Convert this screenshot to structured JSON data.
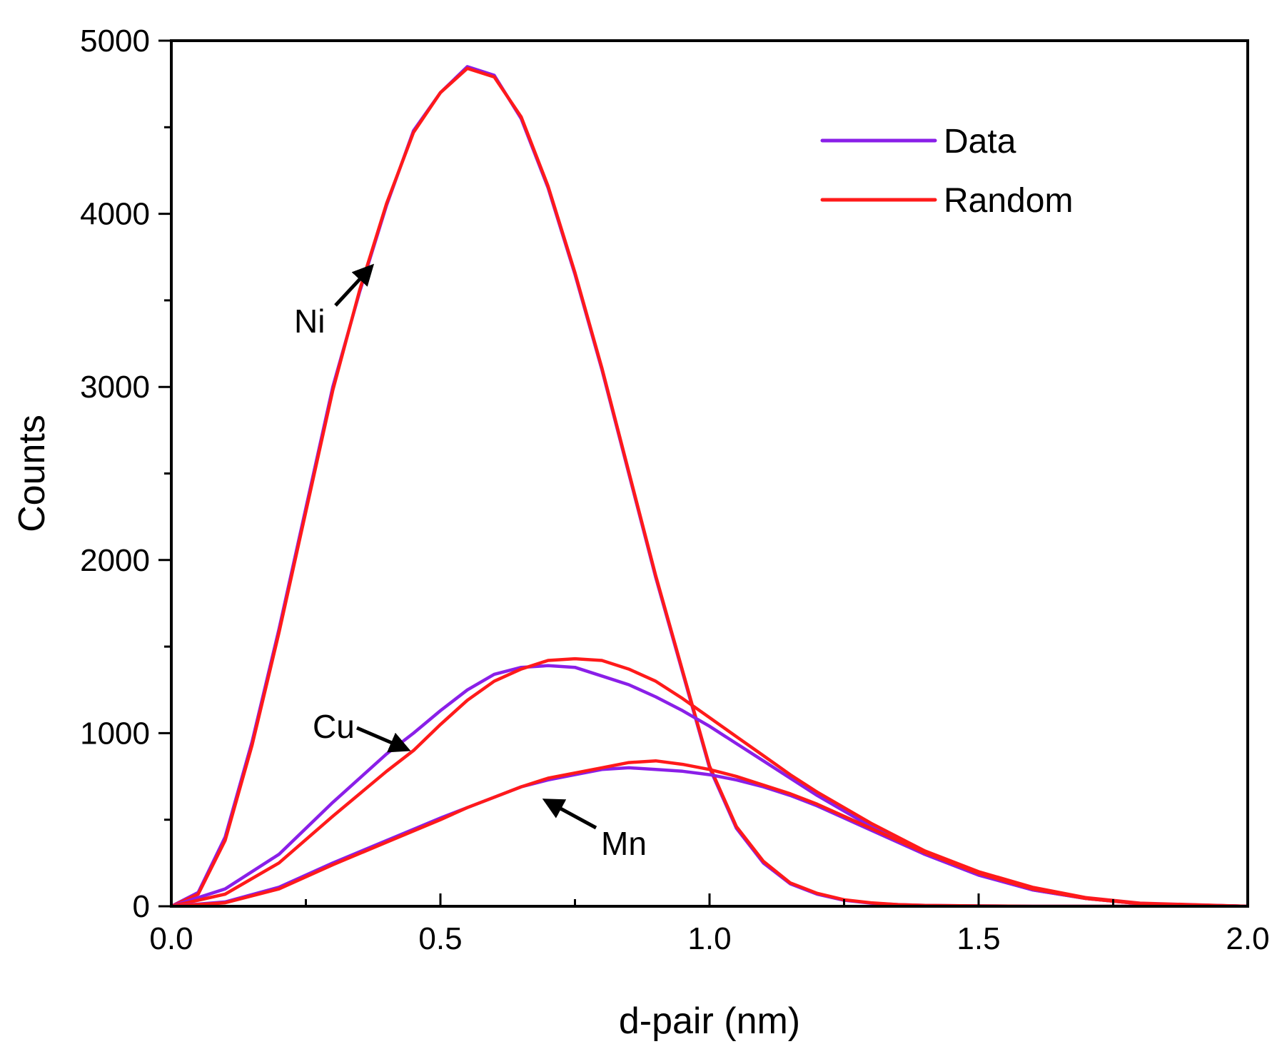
{
  "chart_data": {
    "type": "line",
    "title": "",
    "xlabel": "d-pair (nm)",
    "ylabel": "Counts",
    "xlim": [
      0,
      2.0
    ],
    "ylim": [
      0,
      5000
    ],
    "grid": false,
    "x_ticks": [
      {
        "value": 0.0,
        "label": "0.0"
      },
      {
        "value": 0.5,
        "label": "0.5"
      },
      {
        "value": 1.0,
        "label": "1.0"
      },
      {
        "value": 1.5,
        "label": "1.5"
      },
      {
        "value": 2.0,
        "label": "2.0"
      }
    ],
    "y_ticks": [
      {
        "value": 0,
        "label": "0"
      },
      {
        "value": 1000,
        "label": "1000"
      },
      {
        "value": 2000,
        "label": "2000"
      },
      {
        "value": 3000,
        "label": "3000"
      },
      {
        "value": 4000,
        "label": "4000"
      },
      {
        "value": 5000,
        "label": "5000"
      }
    ],
    "x_minor_step": 0.25,
    "y_minor_step": 500,
    "legend": {
      "position": "top-right",
      "entries": [
        {
          "label": "Data",
          "color": "#8a1fe8"
        },
        {
          "label": "Random",
          "color": "#ff1a1a"
        }
      ]
    },
    "annotations": [
      {
        "text": "Ni",
        "x": 0.38,
        "y": 3700
      },
      {
        "text": "Cu",
        "x": 0.45,
        "y": 900
      },
      {
        "text": "Mn",
        "x": 0.67,
        "y": 620
      }
    ],
    "series": [
      {
        "name": "Data",
        "group": "Ni",
        "color": "#8a1fe8",
        "x": [
          0,
          0.05,
          0.1,
          0.15,
          0.2,
          0.25,
          0.3,
          0.35,
          0.4,
          0.45,
          0.5,
          0.55,
          0.6,
          0.65,
          0.7,
          0.75,
          0.8,
          0.85,
          0.9,
          0.95,
          1.0,
          1.05,
          1.1,
          1.15,
          1.2,
          1.25,
          1.3,
          1.35,
          1.4,
          1.5,
          1.6,
          2.0
        ],
        "y": [
          0,
          80,
          400,
          950,
          1600,
          2300,
          3000,
          3550,
          4050,
          4480,
          4700,
          4850,
          4800,
          4550,
          4150,
          3650,
          3100,
          2500,
          1900,
          1350,
          800,
          450,
          250,
          130,
          70,
          35,
          18,
          10,
          5,
          2,
          0,
          0
        ]
      },
      {
        "name": "Random",
        "group": "Ni",
        "color": "#ff1a1a",
        "x": [
          0,
          0.05,
          0.1,
          0.15,
          0.2,
          0.25,
          0.3,
          0.35,
          0.4,
          0.45,
          0.5,
          0.55,
          0.6,
          0.65,
          0.7,
          0.75,
          0.8,
          0.85,
          0.9,
          0.95,
          1.0,
          1.05,
          1.1,
          1.15,
          1.2,
          1.25,
          1.3,
          1.35,
          1.4,
          1.5,
          1.6,
          2.0
        ],
        "y": [
          0,
          70,
          380,
          930,
          1580,
          2280,
          2980,
          3560,
          4060,
          4470,
          4700,
          4840,
          4790,
          4560,
          4160,
          3660,
          3110,
          2510,
          1910,
          1360,
          810,
          460,
          260,
          135,
          75,
          38,
          20,
          10,
          5,
          2,
          0,
          0
        ]
      },
      {
        "name": "Data",
        "group": "Cu",
        "color": "#8a1fe8",
        "x": [
          0,
          0.1,
          0.2,
          0.3,
          0.4,
          0.45,
          0.5,
          0.55,
          0.6,
          0.65,
          0.7,
          0.75,
          0.8,
          0.85,
          0.9,
          0.95,
          1.0,
          1.05,
          1.1,
          1.15,
          1.2,
          1.3,
          1.4,
          1.5,
          1.6,
          1.7,
          1.8,
          2.0
        ],
        "y": [
          0,
          100,
          300,
          600,
          880,
          1000,
          1130,
          1250,
          1340,
          1380,
          1390,
          1380,
          1330,
          1280,
          1210,
          1130,
          1040,
          940,
          840,
          740,
          640,
          460,
          300,
          180,
          95,
          45,
          15,
          0
        ]
      },
      {
        "name": "Random",
        "group": "Cu",
        "color": "#ff1a1a",
        "x": [
          0,
          0.1,
          0.2,
          0.3,
          0.4,
          0.45,
          0.5,
          0.55,
          0.6,
          0.65,
          0.7,
          0.75,
          0.8,
          0.85,
          0.9,
          0.95,
          1.0,
          1.05,
          1.1,
          1.15,
          1.2,
          1.3,
          1.4,
          1.5,
          1.6,
          1.7,
          1.8,
          2.0
        ],
        "y": [
          0,
          70,
          250,
          520,
          780,
          900,
          1050,
          1190,
          1300,
          1370,
          1420,
          1430,
          1420,
          1370,
          1300,
          1200,
          1090,
          980,
          870,
          760,
          660,
          480,
          320,
          200,
          110,
          50,
          18,
          0
        ]
      },
      {
        "name": "Data",
        "group": "Mn",
        "color": "#8a1fe8",
        "x": [
          0,
          0.1,
          0.2,
          0.3,
          0.4,
          0.5,
          0.55,
          0.6,
          0.65,
          0.7,
          0.75,
          0.8,
          0.85,
          0.9,
          0.95,
          1.0,
          1.05,
          1.1,
          1.15,
          1.2,
          1.3,
          1.4,
          1.5,
          1.6,
          1.7,
          1.8,
          2.0
        ],
        "y": [
          0,
          25,
          110,
          250,
          380,
          510,
          570,
          630,
          690,
          730,
          760,
          790,
          800,
          790,
          780,
          760,
          730,
          690,
          640,
          580,
          440,
          300,
          180,
          95,
          45,
          15,
          0
        ]
      },
      {
        "name": "Random",
        "group": "Mn",
        "color": "#ff1a1a",
        "x": [
          0,
          0.1,
          0.2,
          0.3,
          0.4,
          0.5,
          0.55,
          0.6,
          0.65,
          0.7,
          0.75,
          0.8,
          0.85,
          0.9,
          0.95,
          1.0,
          1.05,
          1.1,
          1.15,
          1.2,
          1.3,
          1.4,
          1.5,
          1.6,
          1.7,
          1.8,
          2.0
        ],
        "y": [
          0,
          20,
          100,
          240,
          370,
          500,
          570,
          630,
          690,
          740,
          770,
          800,
          830,
          840,
          820,
          790,
          750,
          700,
          650,
          590,
          450,
          310,
          190,
          100,
          45,
          15,
          0
        ]
      }
    ]
  }
}
